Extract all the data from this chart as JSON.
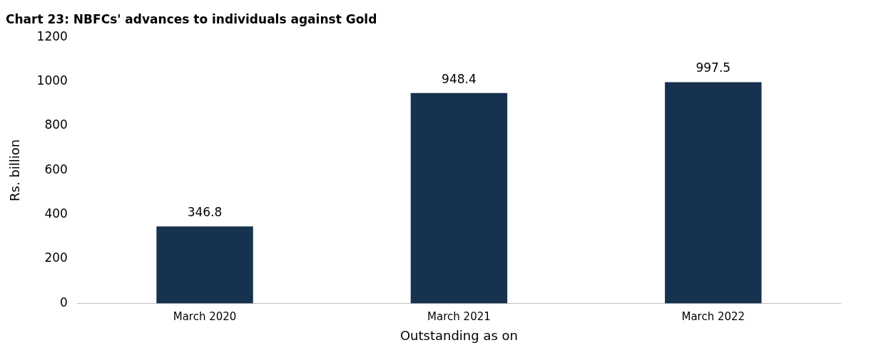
{
  "chart_data": {
    "type": "bar",
    "title": "Chart 23: NBFCs' advances to individuals against Gold",
    "xlabel": "Outstanding as on",
    "ylabel": "Rs. billion",
    "categories": [
      "March 2020",
      "March 2021",
      "March 2022"
    ],
    "values": [
      346.8,
      948.4,
      997.5
    ],
    "color": "#17324f",
    "ylim": [
      0,
      1200
    ],
    "yticks": [
      0,
      200,
      400,
      600,
      800,
      1000,
      1200
    ],
    "grid": false,
    "data_labels": true
  }
}
